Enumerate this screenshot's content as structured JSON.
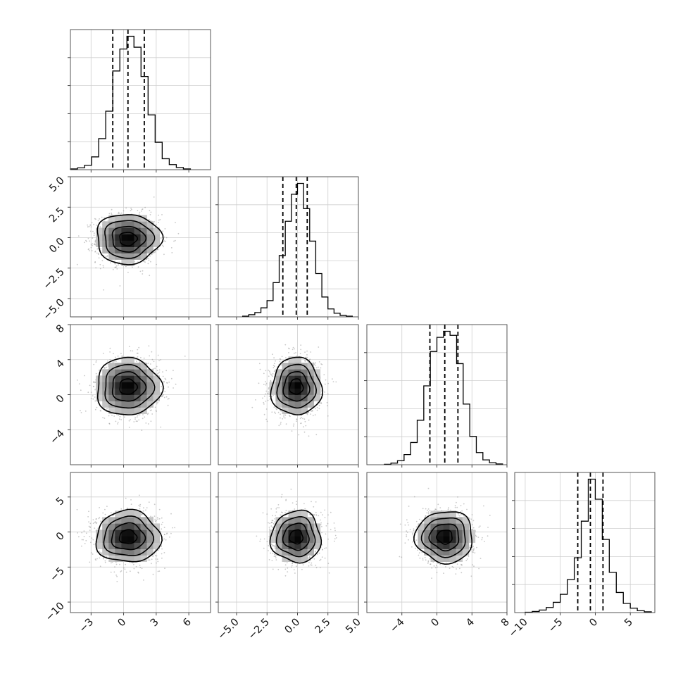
{
  "chart_data": {
    "type": "corner",
    "n_params": 4,
    "grid": true,
    "quantiles": [
      0.16,
      0.5,
      0.84
    ],
    "params": [
      {
        "range": [
          -4.9,
          8.0
        ],
        "ticks": [
          -3,
          0,
          3,
          6
        ],
        "tick_labels": [
          "−3",
          "0",
          "3",
          "6"
        ],
        "quantile_values": [
          -1.0,
          0.4,
          1.9
        ],
        "hist_edges": [
          -4.9,
          -4.25,
          -3.6,
          -2.95,
          -2.3,
          -1.65,
          -1.0,
          -0.35,
          0.3,
          0.95,
          1.6,
          2.25,
          2.9,
          3.55,
          4.2,
          4.85,
          5.5,
          6.15
        ],
        "hist_counts": [
          2,
          5,
          12,
          35,
          85,
          160,
          270,
          330,
          365,
          335,
          255,
          150,
          75,
          30,
          14,
          6,
          2
        ]
      },
      {
        "range": [
          -6.5,
          5.0
        ],
        "ticks": [
          -5.0,
          -2.5,
          0.0,
          2.5,
          5.0
        ],
        "tick_labels": [
          "−5.0",
          "−2.5",
          "0.0",
          "2.5",
          "5.0"
        ],
        "quantile_values": [
          -1.2,
          -0.1,
          0.8
        ],
        "hist_edges": [
          -4.5,
          -4.0,
          -3.5,
          -3.0,
          -2.5,
          -2.0,
          -1.5,
          -1.0,
          -0.5,
          0.0,
          0.5,
          1.0,
          1.5,
          2.0,
          2.5,
          3.0,
          3.5,
          4.0,
          4.5
        ],
        "hist_counts": [
          2,
          6,
          12,
          25,
          45,
          95,
          170,
          265,
          340,
          370,
          300,
          210,
          120,
          55,
          22,
          10,
          4,
          2
        ]
      },
      {
        "range": [
          -8.0,
          8.0
        ],
        "ticks": [
          -4,
          0,
          4,
          8
        ],
        "tick_labels": [
          "−4",
          "0",
          "4",
          "8"
        ],
        "quantile_values": [
          -0.8,
          0.9,
          2.4
        ],
        "hist_edges": [
          -6.0,
          -5.25,
          -4.5,
          -3.75,
          -3.0,
          -2.25,
          -1.5,
          -0.75,
          0.0,
          0.75,
          1.5,
          2.25,
          3.0,
          3.75,
          4.5,
          5.25,
          6.0,
          6.75,
          7.5
        ],
        "hist_counts": [
          1,
          4,
          10,
          25,
          55,
          110,
          195,
          280,
          315,
          330,
          320,
          250,
          150,
          70,
          30,
          12,
          5,
          2
        ]
      },
      {
        "range": [
          -11.5,
          8.5
        ],
        "ticks": [
          -10,
          -5,
          0,
          5
        ],
        "tick_labels": [
          "−10",
          "−5",
          "0",
          "5"
        ],
        "quantile_values": [
          -2.5,
          -0.7,
          1.1
        ],
        "hist_edges": [
          -10.0,
          -9.0,
          -8.0,
          -7.0,
          -6.0,
          -5.0,
          -4.0,
          -3.0,
          -2.0,
          -1.0,
          0.0,
          1.0,
          2.0,
          3.0,
          4.0,
          5.0,
          6.0,
          7.0,
          8.0
        ],
        "hist_counts": [
          1,
          3,
          7,
          14,
          28,
          50,
          90,
          150,
          250,
          365,
          310,
          200,
          110,
          55,
          25,
          12,
          5,
          2
        ]
      }
    ]
  }
}
